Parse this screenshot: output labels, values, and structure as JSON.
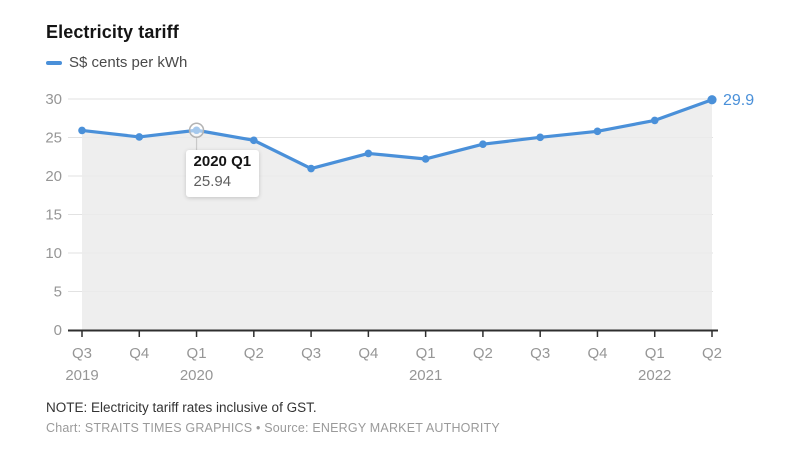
{
  "header": {
    "title": "Electricity tariff",
    "legend_label": "S$ cents per kWh"
  },
  "chart_data": {
    "type": "line",
    "title": "Electricity tariff",
    "series_name": "S$ cents per kWh",
    "categories": [
      "Q3 2019",
      "Q4 2019",
      "Q1 2020",
      "Q2 2020",
      "Q3 2020",
      "Q4 2020",
      "Q1 2021",
      "Q2 2021",
      "Q3 2021",
      "Q4 2021",
      "Q1 2022",
      "Q2 2022"
    ],
    "values": [
      25.92,
      25.07,
      25.94,
      24.63,
      20.97,
      22.93,
      22.21,
      24.13,
      25.02,
      25.8,
      27.22,
      29.9
    ],
    "quarter_labels": [
      "Q3",
      "Q4",
      "Q1",
      "Q2",
      "Q3",
      "Q4",
      "Q1",
      "Q2",
      "Q3",
      "Q4",
      "Q1",
      "Q2"
    ],
    "year_labels": [
      {
        "index": 0,
        "text": "2019"
      },
      {
        "index": 2,
        "text": "2020"
      },
      {
        "index": 6,
        "text": "2021"
      },
      {
        "index": 10,
        "text": "2022"
      }
    ],
    "ylim": [
      0,
      30
    ],
    "yticks": [
      0,
      5,
      10,
      15,
      20,
      25,
      30
    ],
    "grid": true,
    "legend_position": "top-left",
    "end_label": "29.9",
    "highlight": {
      "index": 2,
      "title": "2020 Q1",
      "value": "25.94"
    },
    "colors": {
      "line": "#4a90d9",
      "area": "#ebebeb",
      "grid": "#e2e2e2",
      "axis": "#2e2e2e",
      "axis_label": "#969696",
      "highlight_ring": "#b3b3b3",
      "connector": "#c9c9c9"
    }
  },
  "footer": {
    "note": "NOTE: Electricity tariff rates inclusive of GST.",
    "credit": "Chart: STRAITS TIMES GRAPHICS • Source: ENERGY MARKET AUTHORITY"
  }
}
